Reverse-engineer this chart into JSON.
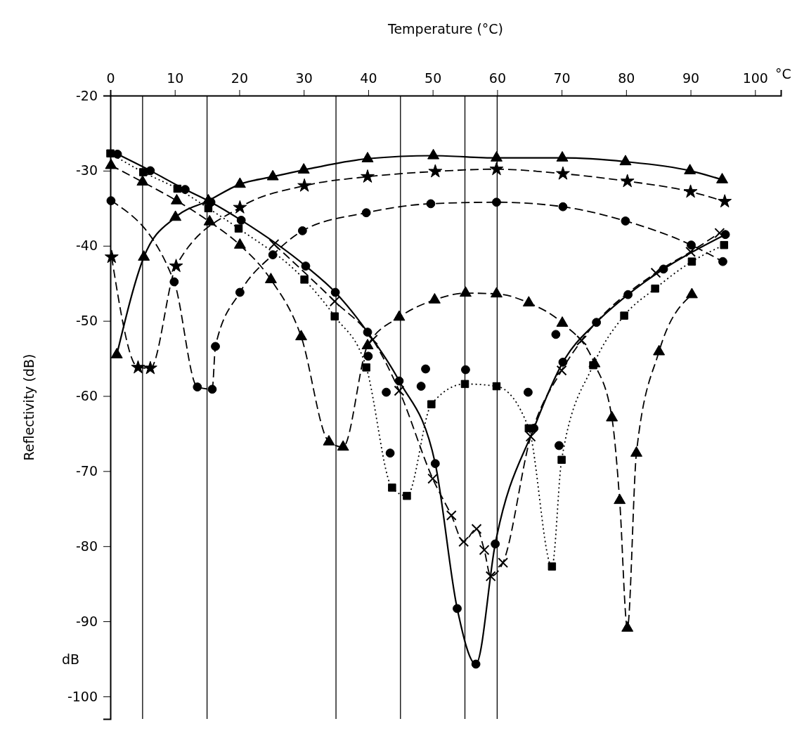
{
  "chart_data": {
    "type": "line",
    "xlabel": "Temperature (°C)",
    "ylabel": "Reflectivity (dB)",
    "annotations": [
      "°C",
      "dB"
    ],
    "xlim": [
      0,
      104
    ],
    "xticks": [
      0,
      10,
      20,
      30,
      40,
      50,
      60,
      70,
      80,
      90,
      100
    ],
    "ylim": [
      -103,
      -20
    ],
    "yticks": [
      -20,
      -30,
      -40,
      -50,
      -60,
      -70,
      -80,
      -90,
      -100
    ],
    "ref_lines": [
      {
        "axis": "x",
        "value": 5
      },
      {
        "axis": "x",
        "value": 15
      },
      {
        "axis": "x",
        "value": 35
      },
      {
        "axis": "x",
        "value": 45
      },
      {
        "axis": "x",
        "value": 55
      },
      {
        "axis": "x",
        "value": 60
      }
    ],
    "series": [
      {
        "marker": "circle",
        "line_style": "solid",
        "color": "#000000",
        "x": [
          1.1,
          6.2,
          11.6,
          15.6,
          20.3,
          30.3,
          34.9,
          39.9,
          44.8,
          50.4,
          53.8,
          56.7,
          59.7,
          65.7,
          70.2,
          75.4,
          80.3,
          85.8,
          95.4
        ],
        "values": [
          -27.8,
          -30,
          -32.5,
          -34.2,
          -36.6,
          -42.7,
          -46.2,
          -51.5,
          -58,
          -69,
          -88.3,
          -95.7,
          -79.7,
          -64.3,
          -55.5,
          -50.2,
          -46.5,
          -43.1,
          -38.5
        ]
      },
      {
        "marker": "cross",
        "line_style": "dashed",
        "color": "#000000",
        "x": [
          25.4,
          34.8,
          40.7,
          44.8,
          50,
          52.9,
          54.8,
          56.8,
          58,
          59,
          60.9,
          65.2,
          70,
          73.1,
          84.6,
          90,
          94.5
        ],
        "values": [
          -39.8,
          -47.4,
          -52.5,
          -59.3,
          -71,
          -75.9,
          -79.4,
          -77.7,
          -80.5,
          -84,
          -82.2,
          -65.4,
          -56.6,
          -52.6,
          -43.6,
          -40.8,
          -38.3
        ]
      },
      {
        "marker": "square",
        "line_style": "dotted",
        "color": "#000000",
        "x": [
          0,
          5.1,
          10.4,
          15.2,
          19.9,
          30.1,
          34.8,
          39.7,
          43.7,
          46,
          49.8,
          55,
          59.9,
          64.9,
          68.5,
          70,
          74.9,
          79.7,
          84.5,
          90.2,
          95.2
        ],
        "values": [
          -27.7,
          -30.2,
          -32.4,
          -35,
          -37.7,
          -44.5,
          -49.4,
          -56.2,
          -72.2,
          -73.3,
          -61.1,
          -58.4,
          -58.7,
          -64.3,
          -82.7,
          -68.5,
          -55.9,
          -49.3,
          -45.7,
          -42.1,
          -39.9
        ]
      },
      {
        "marker": "triangle",
        "line_style": "solid",
        "color": "#000000",
        "x": [
          1,
          5.2,
          10.1,
          15.2,
          20.1,
          25.2,
          30,
          39.9,
          50.1,
          59.9,
          70.1,
          79.9,
          89.9,
          94.9
        ],
        "values": [
          -54.5,
          -41.5,
          -36.2,
          -34,
          -31.8,
          -30.8,
          -29.9,
          -28.4,
          -28,
          -28.3,
          -28.3,
          -28.8,
          -30,
          -31.2
        ]
      },
      {
        "marker": "star",
        "line_style": "dashed",
        "color": "#000000",
        "x": [
          0.2,
          4.3,
          6.2,
          10.2,
          20.1,
          30.1,
          39.9,
          50.4,
          59.9,
          70.2,
          80.2,
          90,
          95.3
        ],
        "values": [
          -41.5,
          -56.2,
          -56.3,
          -42.7,
          -34.9,
          -32,
          -30.8,
          -30.1,
          -29.8,
          -30.4,
          -31.4,
          -32.8,
          -34.1
        ]
      },
      {
        "marker": "circle",
        "line_style": "dashed",
        "color": "#000000",
        "x": [
          0.1,
          9.9,
          13.5,
          15.8,
          16.3,
          20.1,
          25.2,
          29.8,
          39.7,
          49.7,
          59.9,
          70.2,
          79.9,
          90.1,
          95
        ],
        "values": [
          -34,
          -44.8,
          -58.8,
          -59.1,
          -53.4,
          -46.2,
          -41.2,
          -38,
          -35.6,
          -34.4,
          -34.2,
          -34.8,
          -36.7,
          -39.9,
          -42.1
        ]
      },
      {
        "marker": "triangle",
        "line_style": "dashed",
        "color": "#000000",
        "x": [
          0.1,
          5,
          10.3,
          15.4,
          20.1,
          24.9,
          29.6,
          33.9,
          36.1,
          39.9,
          44.8,
          50.3,
          55.1,
          59.9,
          64.9,
          70.1,
          75.1,
          77.8,
          79,
          80.2,
          81.6,
          85.1,
          90.2
        ],
        "values": [
          -29.3,
          -31.5,
          -34,
          -36.8,
          -39.9,
          -44.5,
          -52.1,
          -66.1,
          -66.8,
          -53.3,
          -49.5,
          -47.2,
          -46.3,
          -46.4,
          -47.6,
          -50.3,
          -55.7,
          -62.9,
          -73.9,
          -90.9,
          -67.6,
          -54.1,
          -46.5
        ]
      },
      {
        "type": "scatter",
        "marker": "circle",
        "color": "#000000",
        "x": [
          40,
          69.1
        ],
        "values": [
          -54.7,
          -51.8
        ]
      },
      {
        "type": "scatter",
        "marker": "circle",
        "color": "#000000",
        "x": [
          42.8,
          43.4,
          48.2,
          48.9,
          55.1,
          64.8,
          69.6
        ],
        "values": [
          -59.5,
          -67.6,
          -58.7,
          -56.4,
          -56.5,
          -59.5,
          -66.6
        ]
      }
    ]
  }
}
